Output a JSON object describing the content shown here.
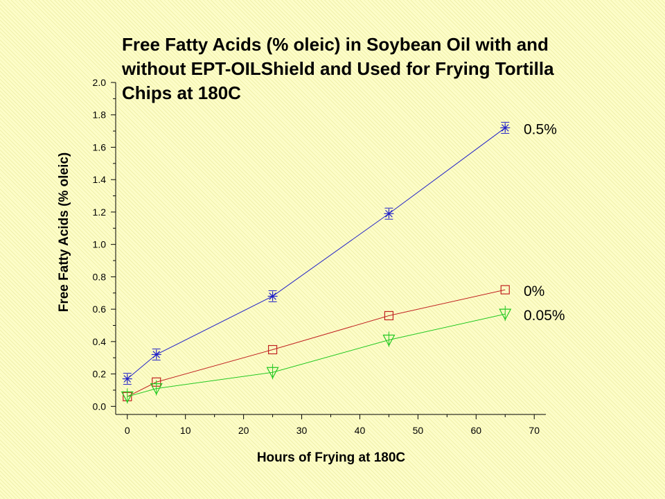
{
  "chart_data": {
    "type": "line",
    "title_lines": [
      "Free Fatty Acids (% oleic) in Soybean Oil with and",
      "without EPT-OILShield and Used for Frying Tortilla",
      "Chips at 180C"
    ],
    "xlabel": "Hours of Frying at 180C",
    "ylabel": "Free Fatty Acids (% oleic)",
    "xlim": [
      -2,
      72
    ],
    "ylim": [
      -0.05,
      2.0
    ],
    "xticks": [
      "0",
      "10",
      "20",
      "30",
      "40",
      "50",
      "60",
      "70"
    ],
    "yticks": [
      "0.0",
      "0.2",
      "0.4",
      "0.6",
      "0.8",
      "1.0",
      "1.2",
      "1.4",
      "1.6",
      "1.8",
      "2.0"
    ],
    "grid": false,
    "legend": "none",
    "series": [
      {
        "name": "0.5%",
        "color": "#2020c8",
        "marker": "asterisk",
        "x": [
          0,
          5,
          25,
          45,
          65
        ],
        "y": [
          0.17,
          0.32,
          0.68,
          1.19,
          1.72
        ]
      },
      {
        "name": "0%",
        "color": "#c02020",
        "marker": "square",
        "x": [
          0,
          5,
          25,
          45,
          65
        ],
        "y": [
          0.06,
          0.15,
          0.35,
          0.56,
          0.72
        ]
      },
      {
        "name": "0.05%",
        "color": "#20c820",
        "marker": "triangle-down",
        "x": [
          0,
          5,
          25,
          45,
          65
        ],
        "y": [
          0.06,
          0.11,
          0.21,
          0.41,
          0.57
        ]
      }
    ]
  }
}
